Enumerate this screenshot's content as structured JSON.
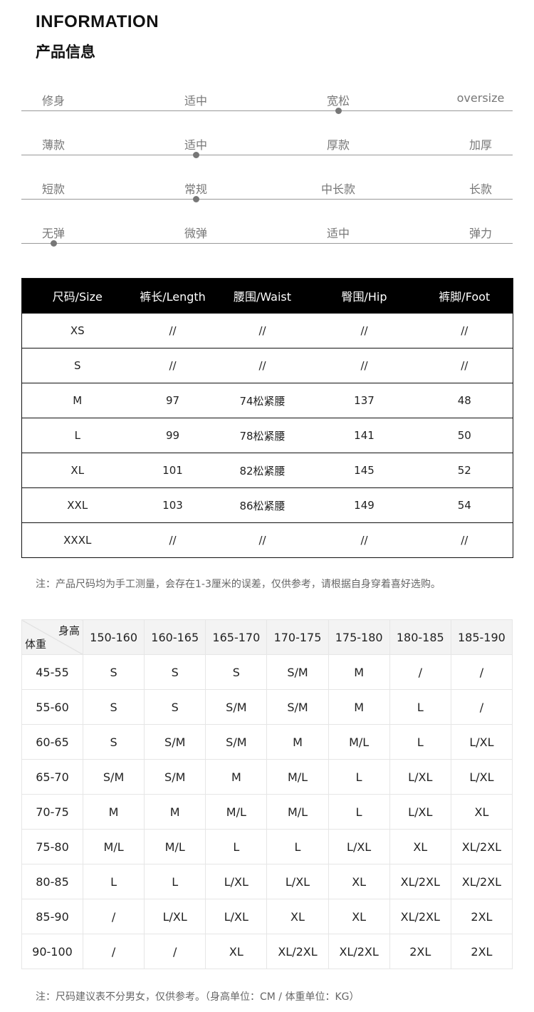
{
  "header": {
    "title_en": "INFORMATION",
    "title_cn": "产品信息"
  },
  "attributes": [
    {
      "labels": [
        "修身",
        "适中",
        "宽松",
        "oversize"
      ],
      "selected": 2
    },
    {
      "labels": [
        "薄款",
        "适中",
        "厚款",
        "加厚"
      ],
      "selected": 1
    },
    {
      "labels": [
        "短款",
        "常规",
        "中长款",
        "长款"
      ],
      "selected": 1
    },
    {
      "labels": [
        "无弹",
        "微弹",
        "适中",
        "弹力"
      ],
      "selected": 0
    }
  ],
  "size_table": {
    "headers": [
      "尺码/Size",
      "裤长/Length",
      "腰围/Waist",
      "臀围/Hip",
      "裤脚/Foot"
    ],
    "rows": [
      [
        "XS",
        "//",
        "//",
        "//",
        "//"
      ],
      [
        "S",
        "//",
        "//",
        "//",
        "//"
      ],
      [
        "M",
        "97",
        "74松紧腰",
        "137",
        "48"
      ],
      [
        "L",
        "99",
        "78松紧腰",
        "141",
        "50"
      ],
      [
        "XL",
        "101",
        "82松紧腰",
        "145",
        "52"
      ],
      [
        "XXL",
        "103",
        "86松紧腰",
        "149",
        "54"
      ],
      [
        "XXXL",
        "//",
        "//",
        "//",
        "//"
      ]
    ]
  },
  "note1": "注：产品尺码均为手工测量，会存在1-3厘米的误差，仅供参考，请根据自身穿着喜好选购。",
  "recommend_table": {
    "corner_top": "身高",
    "corner_bottom": "体重",
    "heights": [
      "150-160",
      "160-165",
      "165-170",
      "170-175",
      "175-180",
      "180-185",
      "185-190"
    ],
    "rows": [
      {
        "weight": "45-55",
        "sizes": [
          "S",
          "S",
          "S",
          "S/M",
          "M",
          "/",
          "/"
        ]
      },
      {
        "weight": "55-60",
        "sizes": [
          "S",
          "S",
          "S/M",
          "S/M",
          "M",
          "L",
          "/"
        ]
      },
      {
        "weight": "60-65",
        "sizes": [
          "S",
          "S/M",
          "S/M",
          "M",
          "M/L",
          "L",
          "L/XL"
        ]
      },
      {
        "weight": "65-70",
        "sizes": [
          "S/M",
          "S/M",
          "M",
          "M/L",
          "L",
          "L/XL",
          "L/XL"
        ]
      },
      {
        "weight": "70-75",
        "sizes": [
          "M",
          "M",
          "M/L",
          "M/L",
          "L",
          "L/XL",
          "XL"
        ]
      },
      {
        "weight": "75-80",
        "sizes": [
          "M/L",
          "M/L",
          "L",
          "L",
          "L/XL",
          "XL",
          "XL/2XL"
        ]
      },
      {
        "weight": "80-85",
        "sizes": [
          "L",
          "L",
          "L/XL",
          "L/XL",
          "XL",
          "XL/2XL",
          "XL/2XL"
        ]
      },
      {
        "weight": "85-90",
        "sizes": [
          "/",
          "L/XL",
          "L/XL",
          "XL",
          "XL",
          "XL/2XL",
          "2XL"
        ]
      },
      {
        "weight": "90-100",
        "sizes": [
          "/",
          "/",
          "XL",
          "XL/2XL",
          "XL/2XL",
          "2XL",
          "2XL"
        ]
      }
    ]
  },
  "note2": "注：尺码建议表不分男女，仅供参考。（身高单位：CM / 体重单位：KG）"
}
